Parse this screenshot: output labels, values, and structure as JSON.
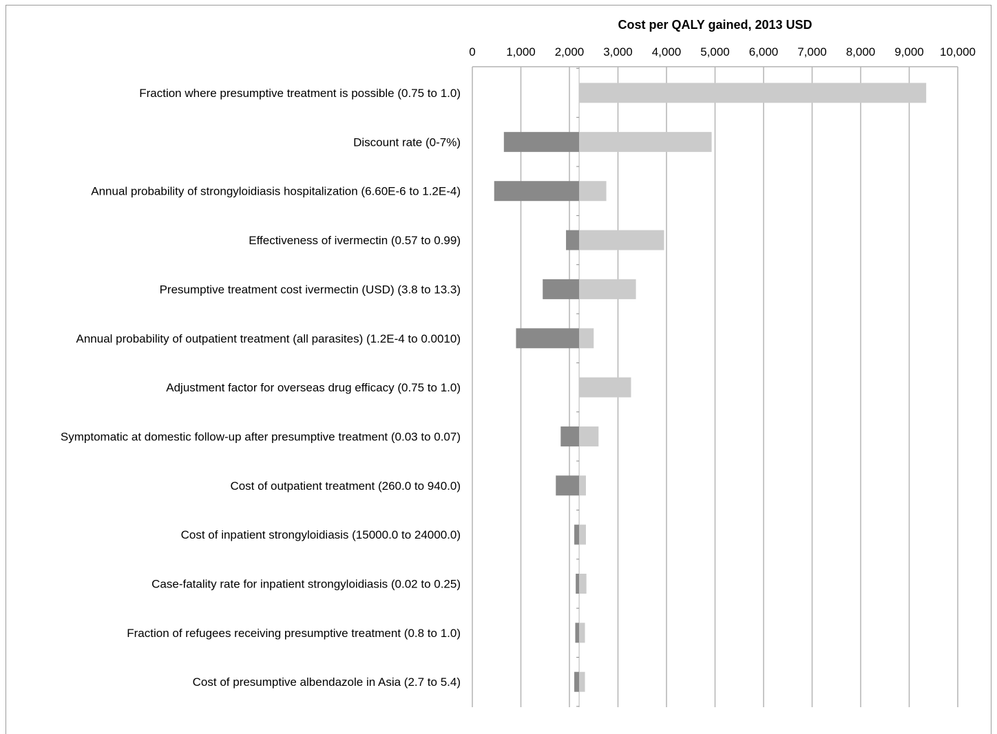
{
  "chart_data": {
    "type": "bar",
    "subtype": "tornado",
    "title": "Cost per QALY gained, 2013 USD",
    "xlabel": "Cost per QALY gained, 2013 USD",
    "ylabel": "",
    "xlim": [
      0,
      10000
    ],
    "x_axis_position": "top",
    "grid": true,
    "base_value": 2200,
    "x_ticks": [
      0,
      1000,
      2000,
      3000,
      4000,
      5000,
      6000,
      7000,
      8000,
      9000,
      10000
    ],
    "x_tick_labels": [
      "0",
      "1,000",
      "2,000",
      "3,000",
      "4,000",
      "5,000",
      "6,000",
      "7,000",
      "8,000",
      "9,000",
      "10,000"
    ],
    "categories": [
      "Fraction where presumptive treatment is possible (0.75 to 1.0)",
      "Discount rate (0-7%)",
      "Annual probability of strongyloidiasis hospitalization (6.60E-6 to 1.2E-4)",
      "Effectiveness of ivermectin (0.57 to 0.99)",
      "Presumptive treatment cost ivermectin (USD) (3.8 to 13.3)",
      "Annual probability of outpatient treatment (all parasites) (1.2E-4 to 0.0010)",
      "Adjustment factor for overseas drug efficacy (0.75 to 1.0)",
      "Symptomatic at domestic follow-up after presumptive treatment (0.03 to 0.07)",
      "Cost of outpatient treatment (260.0 to 940.0)",
      "Cost of inpatient strongyloidiasis (15000.0 to 24000.0)",
      "Case-fatality rate for inpatient strongyloidiasis (0.02 to 0.25)",
      "Fraction of refugees receiving presumptive treatment (0.8 to 1.0)",
      "Cost of presumptive albendazole in Asia (2.7 to 5.4)"
    ],
    "series": [
      {
        "values": [
          2200,
          650,
          450,
          1930,
          1450,
          900,
          2200,
          1820,
          1720,
          2100,
          2130,
          2120,
          2100
        ]
      },
      {
        "values": [
          9350,
          4930,
          2760,
          3950,
          3370,
          2500,
          3270,
          2600,
          2340,
          2340,
          2350,
          2320,
          2320
        ]
      }
    ],
    "colors": {
      "low": "#898989",
      "high": "#cbcbcb",
      "grid": "#b4b4b4",
      "frame": "#9a9a9a"
    }
  }
}
